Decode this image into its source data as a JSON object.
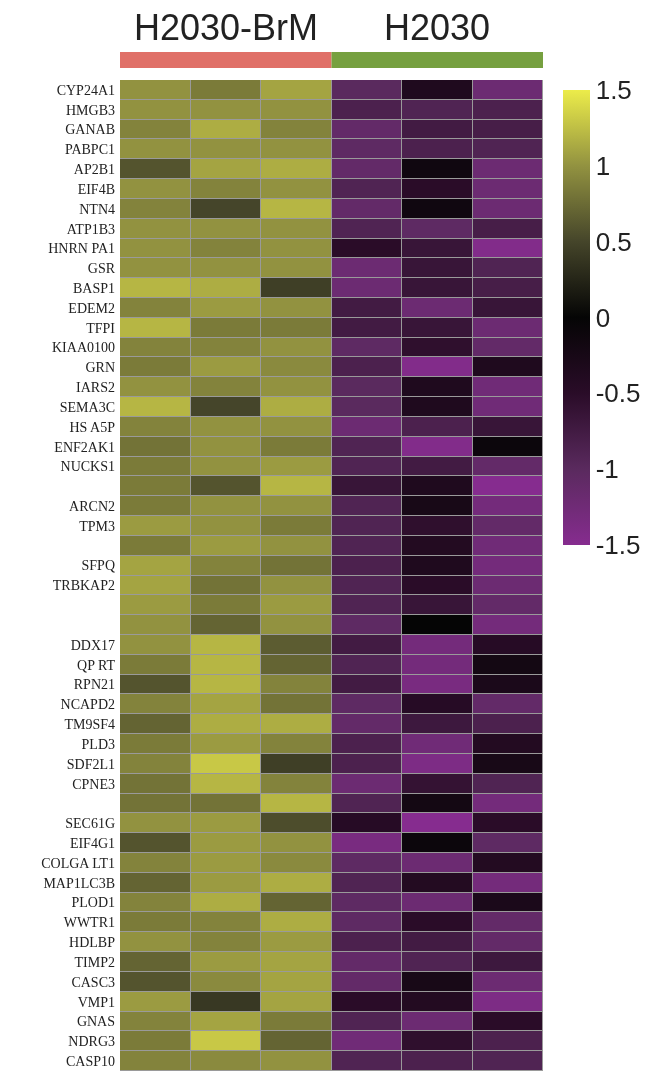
{
  "chart_data": {
    "type": "heatmap",
    "categories": [
      null,
      null,
      null,
      null,
      null,
      null
    ],
    "y_categories": [
      "CYP24A1",
      "HMGB3",
      "GANAB",
      "PABPC1",
      "AP2B1",
      "EIF4B",
      "NTN4",
      "ATP1B3",
      "HNRN PA1",
      "GSR",
      "BASP1",
      "EDEM2",
      "TFPI",
      "KIAA0100",
      "GRN",
      "IARS2",
      "SEMA3C",
      "HS A5P",
      "ENF2AK1",
      "NUCKS1",
      null,
      "ARCN2",
      "TPM3",
      null,
      "SFPQ",
      "TRBKAP2",
      null,
      null,
      "DDX17",
      "QP RT",
      "RPN21",
      "NCAPD2",
      "TM9SF4",
      "PLD3",
      "SDF2L1",
      "CPNE3",
      null,
      "SEC61G",
      "EIF4G1",
      "COLGA LT1",
      "MAP1LC3B",
      "PLOD1",
      "WWTR1",
      "HDLBP",
      "TIMP2",
      "CASC3",
      "VMP1",
      "GNAS",
      "NDRG3",
      "CASP10"
    ],
    "cells": [
      [
        1.0,
        0.85,
        1.1,
        -1.0,
        -0.35,
        -1.2
      ],
      [
        1.0,
        1.0,
        1.0,
        -0.85,
        -0.9,
        -0.85
      ],
      [
        0.9,
        1.15,
        0.9,
        -1.1,
        -0.75,
        -0.8
      ],
      [
        1.0,
        1.0,
        1.0,
        -1.05,
        -0.85,
        -0.9
      ],
      [
        0.6,
        1.1,
        1.15,
        -1.1,
        -0.15,
        -1.2
      ],
      [
        1.0,
        0.9,
        1.0,
        -0.9,
        -0.5,
        -1.2
      ],
      [
        0.9,
        0.5,
        1.2,
        -1.1,
        -0.15,
        -1.2
      ],
      [
        1.0,
        1.0,
        1.0,
        -0.9,
        -1.05,
        -0.8
      ],
      [
        1.0,
        0.9,
        1.0,
        -0.5,
        -0.65,
        -1.45
      ],
      [
        1.0,
        1.0,
        1.0,
        -1.2,
        -0.65,
        -0.9
      ],
      [
        1.2,
        1.15,
        0.45,
        -1.2,
        -0.65,
        -0.8
      ],
      [
        0.9,
        1.05,
        1.0,
        -0.75,
        -1.2,
        -0.65
      ],
      [
        1.2,
        0.85,
        0.85,
        -0.75,
        -0.65,
        -1.2
      ],
      [
        0.9,
        0.9,
        1.0,
        -1.05,
        -0.55,
        -1.1
      ],
      [
        0.85,
        1.05,
        0.95,
        -0.85,
        -1.45,
        -0.35
      ],
      [
        1.0,
        0.9,
        1.0,
        -1.0,
        -0.35,
        -1.25
      ],
      [
        1.2,
        0.5,
        1.15,
        -1.0,
        -0.35,
        -1.25
      ],
      [
        0.9,
        1.0,
        1.0,
        -1.2,
        -0.85,
        -0.65
      ],
      [
        0.8,
        1.0,
        0.85,
        -0.9,
        -1.45,
        -0.1
      ],
      [
        0.85,
        1.0,
        1.05,
        -0.9,
        -0.75,
        -1.1
      ],
      [
        0.85,
        0.6,
        1.2,
        -0.65,
        -0.35,
        -1.5
      ],
      [
        0.85,
        1.0,
        1.0,
        -0.9,
        -0.25,
        -1.3
      ],
      [
        1.05,
        1.0,
        0.85,
        -0.9,
        -0.55,
        -1.1
      ],
      [
        0.85,
        1.05,
        1.0,
        -0.9,
        -0.4,
        -1.25
      ],
      [
        1.1,
        0.9,
        0.8,
        -0.85,
        -0.35,
        -1.3
      ],
      [
        1.1,
        0.8,
        1.0,
        -0.9,
        -0.5,
        -1.2
      ],
      [
        1.05,
        0.85,
        1.05,
        -0.9,
        -0.65,
        -1.1
      ],
      [
        1.0,
        0.7,
        1.0,
        -1.05,
        0.0,
        -1.3
      ],
      [
        1.0,
        1.2,
        0.65,
        -0.75,
        -1.3,
        -0.45
      ],
      [
        0.85,
        1.2,
        0.7,
        -0.9,
        -1.3,
        -0.2
      ],
      [
        0.6,
        1.2,
        0.9,
        -0.75,
        -1.35,
        -0.3
      ],
      [
        0.9,
        1.1,
        0.8,
        -1.05,
        -0.45,
        -1.1
      ],
      [
        0.7,
        1.15,
        1.15,
        -1.1,
        -0.7,
        -0.85
      ],
      [
        0.85,
        1.05,
        0.9,
        -0.85,
        -1.25,
        -0.4
      ],
      [
        0.9,
        1.3,
        0.45,
        -0.85,
        -1.4,
        -0.25
      ],
      [
        0.8,
        1.2,
        0.9,
        -1.2,
        -0.6,
        -0.9
      ],
      [
        0.8,
        0.8,
        1.2,
        -0.9,
        -0.2,
        -1.3
      ],
      [
        1.0,
        1.05,
        0.55,
        -0.45,
        -1.5,
        -0.5
      ],
      [
        0.6,
        1.05,
        1.0,
        -1.35,
        -0.1,
        -1.05
      ],
      [
        0.9,
        1.05,
        0.95,
        -1.05,
        -1.2,
        -0.4
      ],
      [
        0.7,
        1.05,
        1.15,
        -0.9,
        -0.4,
        -1.3
      ],
      [
        0.9,
        1.15,
        0.7,
        -1.05,
        -1.2,
        -0.3
      ],
      [
        0.85,
        0.9,
        1.15,
        -1.05,
        -0.5,
        -1.1
      ],
      [
        1.0,
        0.9,
        1.05,
        -0.85,
        -0.75,
        -1.1
      ],
      [
        0.7,
        1.05,
        1.1,
        -1.1,
        -0.9,
        -0.7
      ],
      [
        0.6,
        0.95,
        1.1,
        -1.1,
        -0.25,
        -1.2
      ],
      [
        1.05,
        0.4,
        1.1,
        -0.5,
        -0.4,
        -1.4
      ],
      [
        0.9,
        1.1,
        0.85,
        -0.9,
        -1.2,
        -0.5
      ],
      [
        0.85,
        1.3,
        0.7,
        -1.25,
        -0.55,
        -0.85
      ],
      [
        0.9,
        0.95,
        1.0,
        -0.9,
        -0.85,
        -0.9
      ]
    ],
    "clim": [
      -1.5,
      1.5
    ],
    "cticks": [
      -1.5,
      -1,
      -0.5,
      0,
      0.5,
      1,
      1.5
    ],
    "annotations": [
      "H2030-BrM",
      "H2030"
    ]
  }
}
